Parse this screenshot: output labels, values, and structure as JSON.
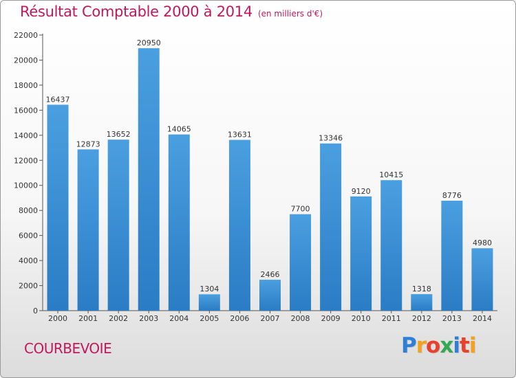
{
  "chart_data": {
    "type": "bar",
    "title": "Résultat Comptable 2000 à 2014",
    "subtitle": "(en milliers d'€)",
    "categories": [
      "2000",
      "2001",
      "2002",
      "2003",
      "2004",
      "2005",
      "2006",
      "2007",
      "2008",
      "2009",
      "2010",
      "2011",
      "2012",
      "2013",
      "2014"
    ],
    "values": [
      16437,
      12873,
      13652,
      20950,
      14065,
      1304,
      13631,
      2466,
      7700,
      13346,
      9120,
      10415,
      1318,
      8776,
      4980
    ],
    "ylim": [
      0,
      22000
    ],
    "yticks": [
      0,
      2000,
      4000,
      6000,
      8000,
      10000,
      12000,
      14000,
      16000,
      18000,
      20000,
      22000
    ],
    "grid": false,
    "legend": "none",
    "bar_color": "#4a9fe0",
    "bar_color_dark": "#2a7cc4"
  },
  "footer": {
    "city": "COURBEVOIE",
    "logo_letters": [
      "P",
      "r",
      "o",
      "x",
      "i",
      "t",
      "i"
    ],
    "logo_colors": [
      "#2f7fd6",
      "#f2a21c",
      "#e8402a",
      "#34a853",
      "#2f7fd6",
      "#e8402a",
      "#f2a21c"
    ]
  }
}
